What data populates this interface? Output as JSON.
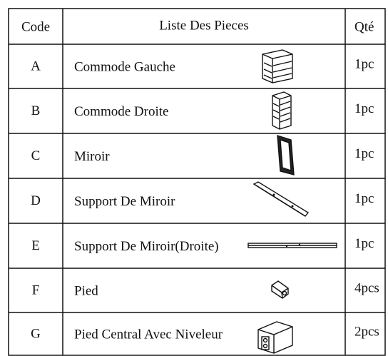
{
  "table": {
    "header": [
      "Code",
      "Liste Des Pieces",
      "Qté"
    ],
    "rows": [
      [
        "A",
        "Commode Gauche",
        "1pc"
      ],
      [
        "B",
        "Commode Droite",
        "1pc"
      ],
      [
        "C",
        "Miroir",
        "1pc"
      ],
      [
        "D",
        "Support De Miroir",
        "1pc"
      ],
      [
        "E",
        "Support De Miroir(Droite)",
        "1pc"
      ],
      [
        "F",
        "Pied",
        "4pcs"
      ],
      [
        "G",
        "Pied Central Avec Niveleur",
        "2pcs"
      ]
    ]
  }
}
